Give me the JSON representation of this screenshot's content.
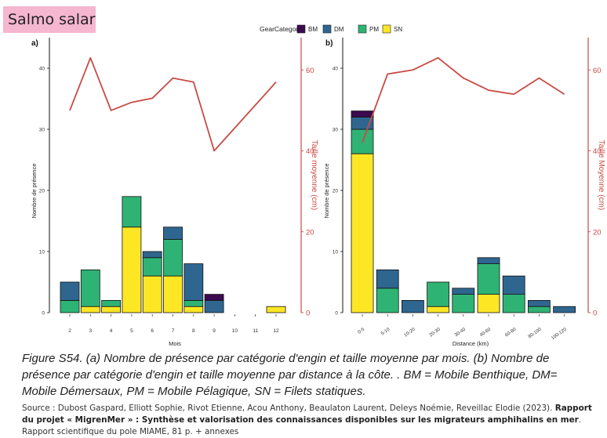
{
  "title_tag": "Salmo salar",
  "legend": {
    "title": "GearCategory",
    "items": [
      {
        "key": "BM",
        "label": "BM",
        "color": "#3b0a4f"
      },
      {
        "key": "DM",
        "label": "DM",
        "color": "#2f6690"
      },
      {
        "key": "PM",
        "label": "PM",
        "color": "#2fb374"
      },
      {
        "key": "SN",
        "label": "SN",
        "color": "#fde725"
      }
    ]
  },
  "line_color": "#c94a44",
  "caption": "Figure S54. (a) Nombre de présence par catégorie d'engin et taille moyenne par mois. (b) Nombre de présence par catégorie d'engin et taille moyenne par distance à la côte. . BM = Mobile Benthique, DM= Mobile Démersaux, PM = Mobile Pélagique, SN = Filets statiques.",
  "source": {
    "prefix": "Source : ",
    "authors": "Dubost Gaspard, Elliott Sophie, Rivot Etienne, Acou Anthony, Beaulaton Laurent, Deleys Noémie, Reveillac Elodie (2023).",
    "title_bold": "Rapport du projet « MigrenMer » : Synthèse et valorisation des connaissances disponibles sur les migrateurs amphihalins en mer",
    "suffix": ". Rapport scientifique du pole MIAME, 81 p. + annexes"
  },
  "chart_data": [
    {
      "panel": "a)",
      "type": "bar",
      "stacked": true,
      "xlabel": "Mois",
      "ylabel": "Nombre de présence",
      "y2label": "Taille moyenne (cm)",
      "categories": [
        "2",
        "3",
        "4",
        "5",
        "6",
        "7",
        "8",
        "9",
        "10",
        "11",
        "12"
      ],
      "ylim": [
        0,
        45
      ],
      "y_ticks": [
        0,
        10,
        20,
        30,
        40
      ],
      "y2lim": [
        0,
        68
      ],
      "y2_ticks": [
        0,
        20,
        40,
        60
      ],
      "series": [
        {
          "name": "SN",
          "values": [
            0,
            1,
            1,
            14,
            6,
            6,
            1,
            0,
            0,
            0,
            1
          ]
        },
        {
          "name": "PM",
          "values": [
            2,
            6,
            1,
            5,
            3,
            6,
            1,
            0,
            0,
            0,
            0
          ]
        },
        {
          "name": "DM",
          "values": [
            3,
            0,
            0,
            0,
            1,
            2,
            6,
            2,
            0,
            0,
            0
          ]
        },
        {
          "name": "BM",
          "values": [
            0,
            0,
            0,
            0,
            0,
            0,
            0,
            1,
            0,
            0,
            0
          ]
        }
      ],
      "mean_size": {
        "x": [
          "2",
          "3",
          "4",
          "5",
          "6",
          "7",
          "8",
          "9",
          "12"
        ],
        "values": [
          50,
          63,
          50,
          52,
          53,
          58,
          57,
          40,
          57
        ]
      },
      "grid": false
    },
    {
      "panel": "b)",
      "type": "bar",
      "stacked": true,
      "xlabel": "Distance (km)",
      "ylabel": "Nombre de présence",
      "y2label": "Taille Moyenne (cm)",
      "categories": [
        "0-5",
        "5-10",
        "10-20",
        "20-30",
        "30-40",
        "40-60",
        "60-80",
        "80-100",
        "100-120"
      ],
      "ylim": [
        0,
        45
      ],
      "y_ticks": [
        0,
        10,
        20,
        30,
        40
      ],
      "y2lim": [
        0,
        68
      ],
      "y2_ticks": [
        0,
        20,
        40,
        60
      ],
      "series": [
        {
          "name": "SN",
          "values": [
            26,
            0,
            0,
            1,
            0,
            3,
            0,
            0,
            0
          ]
        },
        {
          "name": "PM",
          "values": [
            4,
            4,
            0,
            4,
            3,
            5,
            3,
            1,
            0
          ]
        },
        {
          "name": "DM",
          "values": [
            2,
            3,
            2,
            0,
            1,
            1,
            3,
            1,
            1
          ]
        },
        {
          "name": "BM",
          "values": [
            1,
            0,
            0,
            0,
            0,
            0,
            0,
            0,
            0
          ]
        }
      ],
      "mean_size": {
        "x": [
          "0-5",
          "5-10",
          "10-20",
          "20-30",
          "30-40",
          "40-60",
          "60-80",
          "80-100",
          "100-120"
        ],
        "values": [
          42,
          59,
          60,
          63,
          58,
          55,
          54,
          58,
          54
        ]
      },
      "grid": false
    }
  ]
}
